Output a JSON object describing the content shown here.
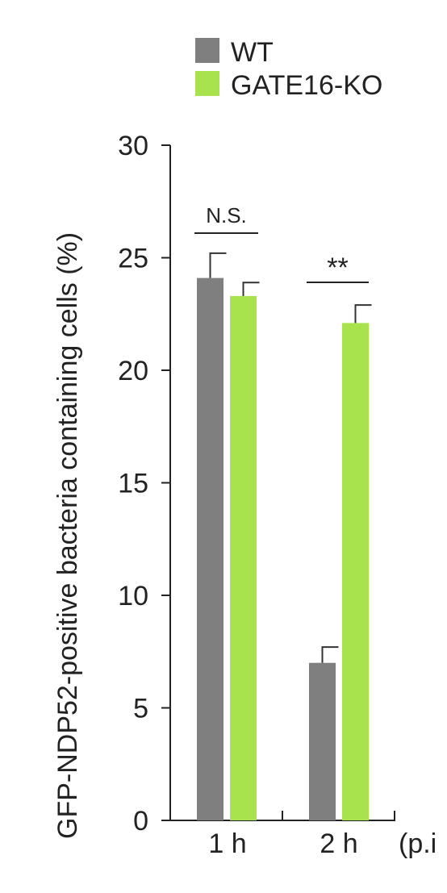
{
  "chart_data": {
    "type": "bar",
    "title": "",
    "xlabel": "",
    "ylabel": "GFP-NDP52-positive bacteria containing cells (%)",
    "x_unit_note": "(p.i",
    "categories": [
      "1 h",
      "2 h"
    ],
    "series": [
      {
        "name": "WT",
        "color": "#7f7f7f",
        "values": [
          24.1,
          7.0
        ],
        "errors": [
          1.1,
          0.7
        ]
      },
      {
        "name": "GATE16-KO",
        "color": "#a8e24c",
        "values": [
          23.3,
          22.1
        ],
        "errors": [
          0.6,
          0.8
        ]
      }
    ],
    "ylim": [
      0,
      30
    ],
    "yticks": [
      0,
      5,
      10,
      15,
      20,
      25,
      30
    ],
    "yticklabels": [
      "0",
      "5",
      "10",
      "15",
      "20",
      "25",
      "30"
    ],
    "annotations": [
      {
        "category_index": 0,
        "text": "N.S."
      },
      {
        "category_index": 1,
        "text": "**"
      }
    ],
    "grid": false,
    "legend": "top-left"
  }
}
